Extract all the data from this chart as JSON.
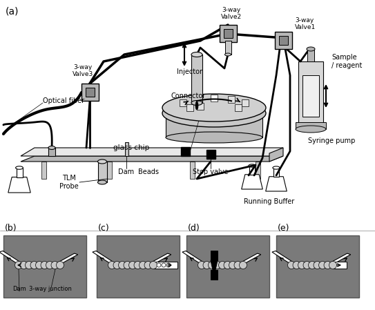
{
  "bg_color": "#ffffff",
  "panel_bg": "#7a7a7a",
  "fig_w": 5.43,
  "fig_h": 4.49,
  "dpi": 100,
  "label_a": "(a)",
  "label_b": "(b)",
  "label_c": "(c)",
  "label_d": "(d)",
  "label_e": "(e)",
  "valve2_label": "3-way\nValve2",
  "valve1_label": "3-way\nValve1",
  "valve3_label": "3-way\nValve3",
  "optical_label": "Optical fiber",
  "injector_label": "Injector",
  "connector_label": "Connector",
  "chip_label": "glass chip",
  "tlm_label": "TLM\nProbe",
  "dam_label": "Dam",
  "beads_label": "Beads",
  "stopvalve_label": "Stop valve",
  "syringe_label": "Syringe pump",
  "buffer_label": "Running Buffer",
  "sample_label": "Sample\n/ reagent",
  "dam_bottom_label": "Dam",
  "junction_bottom_label": "3-way junction",
  "chip_color": "#d8d8d8",
  "chip_top_color": "#e8e8e8",
  "chip_side_color": "#b8b8b8",
  "valve_color": "#b8b8b8",
  "valve_dark": "#888888",
  "stage_color": "#c0c0c0",
  "stage_top_color": "#d0d0d0",
  "injector_color": "#c8c8c8",
  "syringe_body_color": "#d8d8d8",
  "syringe_inner_color": "#f0f0f0",
  "flask_color": "#f0f0f0",
  "tube_color": "#c8c8c8",
  "black": "#000000",
  "white": "#ffffff",
  "gray_medium": "#a0a0a0",
  "gray_light": "#e0e0e0"
}
